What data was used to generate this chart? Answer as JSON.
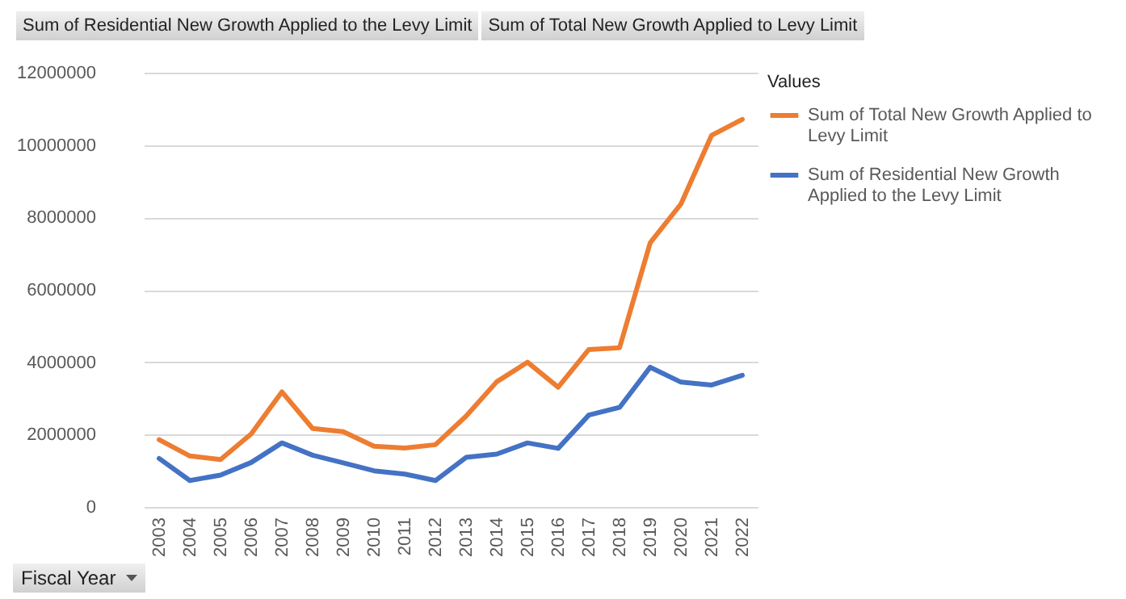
{
  "chart_data": {
    "type": "line",
    "xlabel": "Fiscal Year",
    "legend_title": "Values",
    "legend": "right",
    "grid": "y",
    "line_style": "solid",
    "marker": "none",
    "annotations": [
      "Sum of Residential New Growth Applied to the Levy Limit",
      "Sum of Total New Growth Applied to Levy Limit"
    ],
    "categories": [
      "2003",
      "2004",
      "2005",
      "2006",
      "2007",
      "2008",
      "2009",
      "2010",
      "2011",
      "2012",
      "2013",
      "2014",
      "2015",
      "2016",
      "2017",
      "2018",
      "2019",
      "2020",
      "2021",
      "2022"
    ],
    "ylim": [
      0,
      12000000
    ],
    "yticks": [
      0,
      2000000,
      4000000,
      6000000,
      8000000,
      10000000,
      12000000
    ],
    "series": [
      {
        "name": "Sum of Total New Growth Applied to Levy Limit",
        "color": "#ed7d31",
        "values": [
          1860000,
          1410000,
          1310000,
          2020000,
          3180000,
          2170000,
          2080000,
          1680000,
          1630000,
          1720000,
          2510000,
          3460000,
          4000000,
          3310000,
          4350000,
          4400000,
          7300000,
          8370000,
          10270000,
          10710000
        ]
      },
      {
        "name": "Sum of Residential New Growth Applied to the Levy Limit",
        "color": "#4472c4",
        "values": [
          1340000,
          730000,
          880000,
          1230000,
          1770000,
          1430000,
          1220000,
          1000000,
          910000,
          730000,
          1370000,
          1460000,
          1770000,
          1620000,
          2540000,
          2750000,
          3860000,
          3450000,
          3370000,
          3640000
        ]
      }
    ]
  }
}
